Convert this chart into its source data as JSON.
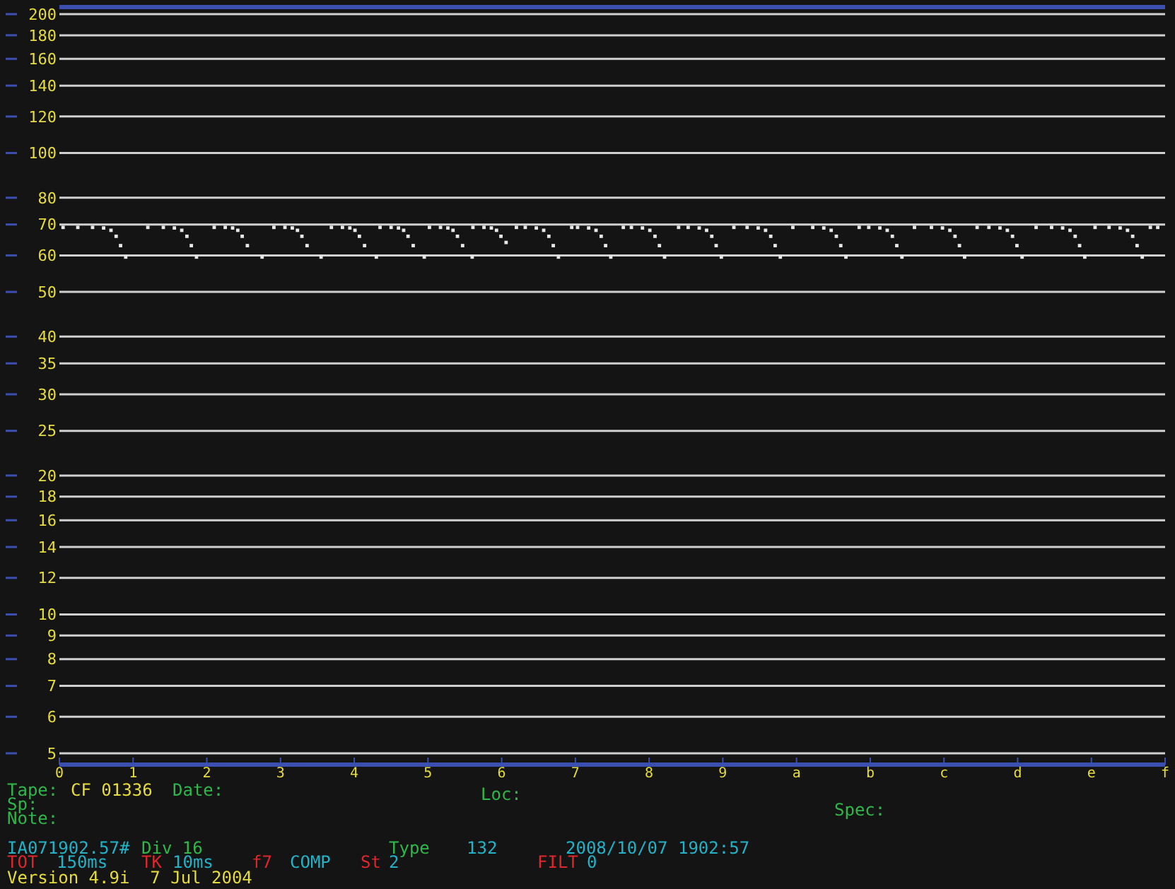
{
  "chart_data": {
    "type": "scatter",
    "marker": "square",
    "log": "y",
    "grid": "y",
    "xlim": [
      0,
      15
    ],
    "xticks": [
      0,
      1,
      2,
      3,
      4,
      5,
      6,
      7,
      8,
      9,
      {
        "value": 10,
        "label": "a"
      },
      {
        "value": 11,
        "label": "b"
      },
      {
        "value": 12,
        "label": "c"
      },
      {
        "value": 13,
        "label": "d"
      },
      {
        "value": 14,
        "label": "e"
      },
      {
        "value": 15,
        "label": "f"
      }
    ],
    "ylim": [
      5,
      200
    ],
    "yticks": [
      5,
      6,
      7,
      8,
      9,
      10,
      12,
      14,
      16,
      18,
      20,
      25,
      30,
      35,
      40,
      50,
      60,
      70,
      80,
      100,
      120,
      140,
      160,
      180,
      200
    ],
    "series": [
      {
        "color": "#e8e8e8",
        "x": [
          0.05,
          0.25,
          0.45,
          0.6,
          0.7,
          0.77,
          0.83,
          0.9,
          1.2,
          1.41,
          1.56,
          1.66,
          1.73,
          1.79,
          1.86,
          2.1,
          2.25,
          2.35,
          2.42,
          2.48,
          2.55,
          2.75,
          2.91,
          3.06,
          3.16,
          3.23,
          3.29,
          3.36,
          3.55,
          3.69,
          3.84,
          3.94,
          4.01,
          4.07,
          4.14,
          4.3,
          4.35,
          4.5,
          4.6,
          4.67,
          4.73,
          4.8,
          4.95,
          5.02,
          5.17,
          5.27,
          5.34,
          5.4,
          5.47,
          5.6,
          5.61,
          5.76,
          5.86,
          5.93,
          5.99,
          6.06,
          6.2,
          6.32,
          6.47,
          6.57,
          6.64,
          6.7,
          6.77,
          6.95,
          7.03,
          7.18,
          7.28,
          7.35,
          7.41,
          7.48,
          7.65,
          7.76,
          7.91,
          8.01,
          8.08,
          8.14,
          8.21,
          8.4,
          8.53,
          8.68,
          8.78,
          8.85,
          8.91,
          8.98,
          9.15,
          9.33,
          9.48,
          9.58,
          9.65,
          9.71,
          9.78,
          9.95,
          10.22,
          10.37,
          10.47,
          10.54,
          10.6,
          10.67,
          10.85,
          10.98,
          11.13,
          11.23,
          11.3,
          11.36,
          11.43,
          11.6,
          11.83,
          11.98,
          12.08,
          12.15,
          12.21,
          12.28,
          12.45,
          12.61,
          12.76,
          12.86,
          12.93,
          12.99,
          13.06,
          13.25,
          13.46,
          13.61,
          13.71,
          13.78,
          13.84,
          13.91,
          14.05,
          14.24,
          14.39,
          14.49,
          14.56,
          14.62,
          14.69,
          14.8,
          14.9
        ],
        "values": [
          69,
          69,
          69,
          68.8,
          68,
          66,
          63,
          59.5,
          69,
          69,
          68.8,
          68,
          66,
          63,
          59.5,
          69,
          69,
          68.8,
          68,
          66,
          63,
          59.5,
          69,
          69,
          68.8,
          68,
          66,
          63,
          59.5,
          69,
          69,
          68.8,
          68,
          66,
          63,
          59.5,
          69,
          69,
          68.8,
          68,
          66,
          63,
          59.5,
          69,
          69,
          68.8,
          68,
          66,
          63,
          59.5,
          69,
          69,
          68.8,
          68,
          66,
          64,
          69,
          69,
          68.8,
          68,
          66,
          63,
          59.5,
          69,
          69,
          68.8,
          68,
          66,
          63,
          59.5,
          69,
          69,
          68.8,
          68,
          66,
          63,
          59.5,
          69,
          69,
          68.8,
          68,
          66,
          63,
          59.5,
          69,
          69,
          68.8,
          68,
          66,
          63,
          59.5,
          69,
          69,
          68.8,
          68,
          66,
          63,
          59.5,
          69,
          69,
          68.8,
          68,
          66,
          63,
          59.5,
          69,
          69,
          68.8,
          68,
          66,
          63,
          59.5,
          69,
          69,
          68.8,
          68,
          66,
          63,
          59.5,
          69,
          69,
          68.8,
          68,
          66,
          63,
          59.5,
          69,
          69,
          68.8,
          68,
          66,
          63,
          59.5,
          69,
          69
        ]
      }
    ],
    "annotations": [
      "Tape:",
      "CF 01336",
      "Date:",
      "Loc:",
      "Sp:",
      "Spec:",
      "Note:",
      "IA071902.57#",
      "Div 16",
      "Type",
      "132",
      "2008/10/07 1902:57",
      "TOT",
      "150ms",
      "TK",
      "10ms",
      "f7",
      "COMP",
      "St",
      "2",
      "FILT",
      "0",
      "Version 4.9i  7 Jul 2004"
    ]
  }
}
